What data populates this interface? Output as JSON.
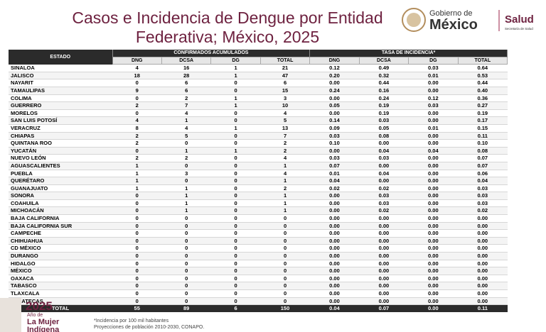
{
  "header": {
    "title_lines": [
      "Casos e Incidencia de Dengue por Entidad",
      "Federativa; México, 2025"
    ],
    "logo": {
      "line1": "Gobierno de",
      "line2": "México",
      "agency": "Salud",
      "agency_sub": "Secretaría de Salud"
    }
  },
  "table": {
    "state_header": "ESTADO",
    "group_headers": [
      "CONFIRMADOS ACUMULADOS",
      "TASA DE INCIDENCIA*"
    ],
    "columns": [
      "DNG",
      "DCSA",
      "DG",
      "TOTAL",
      "DNG",
      "DCSA",
      "DG",
      "TOTAL"
    ],
    "rows": [
      [
        "SINALOA",
        "4",
        "16",
        "1",
        "21",
        "0.12",
        "0.49",
        "0.03",
        "0.64"
      ],
      [
        "JALISCO",
        "18",
        "28",
        "1",
        "47",
        "0.20",
        "0.32",
        "0.01",
        "0.53"
      ],
      [
        "NAYARIT",
        "0",
        "6",
        "0",
        "6",
        "0.00",
        "0.44",
        "0.00",
        "0.44"
      ],
      [
        "TAMAULIPAS",
        "9",
        "6",
        "0",
        "15",
        "0.24",
        "0.16",
        "0.00",
        "0.40"
      ],
      [
        "COLIMA",
        "0",
        "2",
        "1",
        "3",
        "0.00",
        "0.24",
        "0.12",
        "0.36"
      ],
      [
        "GUERRERO",
        "2",
        "7",
        "1",
        "10",
        "0.05",
        "0.19",
        "0.03",
        "0.27"
      ],
      [
        "MORELOS",
        "0",
        "4",
        "0",
        "4",
        "0.00",
        "0.19",
        "0.00",
        "0.19"
      ],
      [
        "SAN LUIS POTOSÍ",
        "4",
        "1",
        "0",
        "5",
        "0.14",
        "0.03",
        "0.00",
        "0.17"
      ],
      [
        "VERACRUZ",
        "8",
        "4",
        "1",
        "13",
        "0.09",
        "0.05",
        "0.01",
        "0.15"
      ],
      [
        "CHIAPAS",
        "2",
        "5",
        "0",
        "7",
        "0.03",
        "0.08",
        "0.00",
        "0.11"
      ],
      [
        "QUINTANA ROO",
        "2",
        "0",
        "0",
        "2",
        "0.10",
        "0.00",
        "0.00",
        "0.10"
      ],
      [
        "YUCATÁN",
        "0",
        "1",
        "1",
        "2",
        "0.00",
        "0.04",
        "0.04",
        "0.08"
      ],
      [
        "NUEVO LEÓN",
        "2",
        "2",
        "0",
        "4",
        "0.03",
        "0.03",
        "0.00",
        "0.07"
      ],
      [
        "AGUASCALIENTES",
        "1",
        "0",
        "0",
        "1",
        "0.07",
        "0.00",
        "0.00",
        "0.07"
      ],
      [
        "PUEBLA",
        "1",
        "3",
        "0",
        "4",
        "0.01",
        "0.04",
        "0.00",
        "0.06"
      ],
      [
        "QUERÉTARO",
        "1",
        "0",
        "0",
        "1",
        "0.04",
        "0.00",
        "0.00",
        "0.04"
      ],
      [
        "GUANAJUATO",
        "1",
        "1",
        "0",
        "2",
        "0.02",
        "0.02",
        "0.00",
        "0.03"
      ],
      [
        "SONORA",
        "0",
        "1",
        "0",
        "1",
        "0.00",
        "0.03",
        "0.00",
        "0.03"
      ],
      [
        "COAHUILA",
        "0",
        "1",
        "0",
        "1",
        "0.00",
        "0.03",
        "0.00",
        "0.03"
      ],
      [
        "MICHOACÁN",
        "0",
        "1",
        "0",
        "1",
        "0.00",
        "0.02",
        "0.00",
        "0.02"
      ],
      [
        "BAJA CALIFORNIA",
        "0",
        "0",
        "0",
        "0",
        "0.00",
        "0.00",
        "0.00",
        "0.00"
      ],
      [
        "BAJA CALIFORNIA SUR",
        "0",
        "0",
        "0",
        "0",
        "0.00",
        "0.00",
        "0.00",
        "0.00"
      ],
      [
        "CAMPECHE",
        "0",
        "0",
        "0",
        "0",
        "0.00",
        "0.00",
        "0.00",
        "0.00"
      ],
      [
        "CHIHUAHUA",
        "0",
        "0",
        "0",
        "0",
        "0.00",
        "0.00",
        "0.00",
        "0.00"
      ],
      [
        "CD MÉXICO",
        "0",
        "0",
        "0",
        "0",
        "0.00",
        "0.00",
        "0.00",
        "0.00"
      ],
      [
        "DURANGO",
        "0",
        "0",
        "0",
        "0",
        "0.00",
        "0.00",
        "0.00",
        "0.00"
      ],
      [
        "HIDALGO",
        "0",
        "0",
        "0",
        "0",
        "0.00",
        "0.00",
        "0.00",
        "0.00"
      ],
      [
        "MÉXICO",
        "0",
        "0",
        "0",
        "0",
        "0.00",
        "0.00",
        "0.00",
        "0.00"
      ],
      [
        "OAXACA",
        "0",
        "0",
        "0",
        "0",
        "0.00",
        "0.00",
        "0.00",
        "0.00"
      ],
      [
        "TABASCO",
        "0",
        "0",
        "0",
        "0",
        "0.00",
        "0.00",
        "0.00",
        "0.00"
      ],
      [
        "TLAXCALA",
        "0",
        "0",
        "0",
        "0",
        "0.00",
        "0.00",
        "0.00",
        "0.00"
      ],
      [
        "ZACATECAS",
        "0",
        "0",
        "0",
        "0",
        "0.00",
        "0.00",
        "0.00",
        "0.00"
      ]
    ],
    "total": [
      "TOTAL",
      "55",
      "89",
      "6",
      "150",
      "0.04",
      "0.07",
      "0.00",
      "0.11"
    ]
  },
  "footer": {
    "notes": [
      "*Incidencia por 100 mil habitantes",
      "Proyecciones de población 2010-2030, CONAPO."
    ],
    "badge": {
      "year": "2025",
      "line1": "Año de",
      "line2": "La Mujer",
      "line3": "Indígena"
    }
  }
}
